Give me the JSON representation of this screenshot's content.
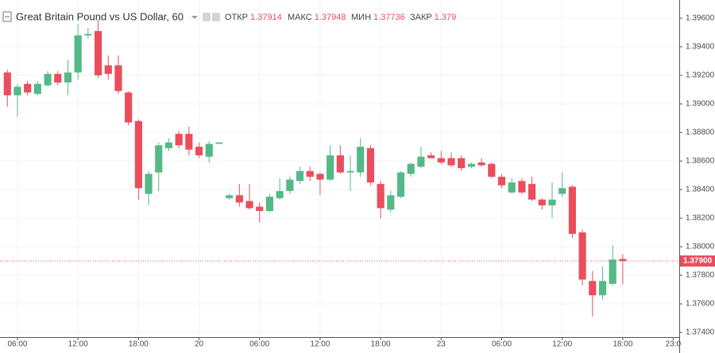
{
  "chart_data": {
    "type": "candlestick",
    "title": "Great Britain Pound vs US Dollar, 60",
    "header": [
      {
        "label": "ОТКР",
        "value": 1.37914
      },
      {
        "label": "МАКС",
        "value": 1.37948
      },
      {
        "label": "МИН",
        "value": 1.37736
      },
      {
        "label": "ЗАКР",
        "value": 1.379
      }
    ],
    "x": [
      5,
      6,
      7,
      8,
      9,
      10,
      11,
      12,
      13,
      14,
      15,
      16,
      17,
      18,
      19,
      20,
      21,
      22,
      23,
      24,
      25,
      26,
      27,
      28,
      29,
      30,
      31,
      32,
      33,
      34,
      35,
      36,
      37,
      38,
      39,
      40,
      41,
      42,
      43,
      44,
      45,
      46,
      47,
      48,
      49,
      50,
      51,
      52,
      53,
      54,
      55,
      56,
      57,
      58,
      59,
      60,
      61,
      62,
      63,
      64,
      65,
      66
    ],
    "open": [
      1.3922,
      1.3906,
      1.3914,
      1.3907,
      1.3913,
      1.3921,
      1.3915,
      1.3922,
      1.3948,
      1.3951,
      1.3927,
      1.3927,
      1.3908,
      1.3888,
      1.3837,
      1.3852,
      1.3869,
      1.3879,
      1.3879,
      1.387,
      1.3863,
      1.3872,
      1.3834,
      1.3836,
      1.3832,
      1.3828,
      1.3825,
      1.3834,
      1.3839,
      1.3846,
      1.3853,
      1.3851,
      1.3847,
      1.3864,
      1.3852,
      1.3852,
      1.3869,
      1.3844,
      1.3826,
      1.3835,
      1.3851,
      1.3856,
      1.3864,
      1.3862,
      1.3862,
      1.3862,
      1.3856,
      1.3859,
      1.3858,
      1.3849,
      1.3838,
      1.3846,
      1.3844,
      1.3833,
      1.3829,
      1.3837,
      1.3842,
      1.381,
      1.3776,
      1.3766,
      1.3774,
      1.37914
    ],
    "high": [
      1.3924,
      1.3914,
      1.3916,
      1.3916,
      1.3923,
      1.3923,
      1.3931,
      1.3956,
      1.3953,
      1.3959,
      1.3934,
      1.3934,
      1.3909,
      1.3889,
      1.3853,
      1.3873,
      1.3876,
      1.3881,
      1.3884,
      1.3873,
      1.3874,
      1.3873,
      1.3837,
      1.3844,
      1.3844,
      1.3831,
      1.3837,
      1.3848,
      1.3849,
      1.3856,
      1.3856,
      1.3852,
      1.3871,
      1.3871,
      1.3864,
      1.3876,
      1.3871,
      1.3846,
      1.3839,
      1.3853,
      1.3859,
      1.387,
      1.3866,
      1.3867,
      1.3866,
      1.3864,
      1.3859,
      1.3862,
      1.3859,
      1.3851,
      1.3848,
      1.3848,
      1.3849,
      1.3834,
      1.3845,
      1.3852,
      1.3843,
      1.3812,
      1.3783,
      1.3786,
      1.3801,
      1.37948
    ],
    "low": [
      1.3898,
      1.3891,
      1.3906,
      1.3906,
      1.3912,
      1.3913,
      1.3906,
      1.3917,
      1.3946,
      1.3918,
      1.3917,
      1.3907,
      1.3885,
      1.3833,
      1.3829,
      1.3839,
      1.3867,
      1.3869,
      1.3864,
      1.3862,
      1.3859,
      1.3872,
      1.3833,
      1.3828,
      1.3826,
      1.3817,
      1.3824,
      1.3833,
      1.3837,
      1.3844,
      1.3846,
      1.3836,
      1.3846,
      1.3851,
      1.3839,
      1.3849,
      1.3843,
      1.382,
      1.3824,
      1.3834,
      1.3849,
      1.3855,
      1.3862,
      1.3858,
      1.3856,
      1.3853,
      1.3855,
      1.3856,
      1.3848,
      1.3841,
      1.3837,
      1.3837,
      1.3832,
      1.3826,
      1.382,
      1.3835,
      1.3806,
      1.3773,
      1.3751,
      1.3763,
      1.3773,
      1.37736
    ],
    "close": [
      1.3906,
      1.3912,
      1.3908,
      1.3914,
      1.3921,
      1.3915,
      1.3922,
      1.3948,
      1.3949,
      1.392,
      1.3921,
      1.3909,
      1.3887,
      1.3841,
      1.3851,
      1.3871,
      1.3873,
      1.3871,
      1.3868,
      1.3864,
      1.3872,
      1.3873,
      1.3836,
      1.3831,
      1.3827,
      1.3825,
      1.3835,
      1.3839,
      1.3847,
      1.3853,
      1.3849,
      1.3847,
      1.3864,
      1.3852,
      1.3853,
      1.387,
      1.3845,
      1.3827,
      1.3836,
      1.3852,
      1.3858,
      1.3863,
      1.3862,
      1.3859,
      1.3857,
      1.3855,
      1.3858,
      1.3857,
      1.3849,
      1.3843,
      1.3845,
      1.3838,
      1.3833,
      1.3829,
      1.3833,
      1.3841,
      1.3809,
      1.3777,
      1.3766,
      1.3776,
      1.3791,
      1.379
    ],
    "up_color": "#53b987",
    "down_color": "#eb4d5c",
    "xlim": [
      4.27,
      71.6
    ],
    "ylim": [
      1.37367,
      1.39683
    ],
    "xticks": [
      {
        "value": 6,
        "label": "06:00"
      },
      {
        "value": 12,
        "label": "12:00"
      },
      {
        "value": 18,
        "label": "18:00"
      },
      {
        "value": 24,
        "label": "20"
      },
      {
        "value": 30,
        "label": "06:00"
      },
      {
        "value": 36,
        "label": "12:00"
      },
      {
        "value": 42,
        "label": "18:00"
      },
      {
        "value": 48,
        "label": "23"
      },
      {
        "value": 54,
        "label": "06:00"
      },
      {
        "value": 60,
        "label": "12:00"
      },
      {
        "value": 66,
        "label": "18:00"
      },
      {
        "value": 71,
        "label": "23:0"
      }
    ],
    "yticks": [
      {
        "value": 1.396,
        "label": "1.39600"
      },
      {
        "value": 1.394,
        "label": "1.39400"
      },
      {
        "value": 1.392,
        "label": "1.39200"
      },
      {
        "value": 1.39,
        "label": "1.39000"
      },
      {
        "value": 1.388,
        "label": "1.38800"
      },
      {
        "value": 1.386,
        "label": "1.38600"
      },
      {
        "value": 1.384,
        "label": "1.38400"
      },
      {
        "value": 1.382,
        "label": "1.38200"
      },
      {
        "value": 1.38,
        "label": "1.38000"
      },
      {
        "value": 1.378,
        "label": "1.37800"
      },
      {
        "value": 1.376,
        "label": "1.37600"
      },
      {
        "value": 1.374,
        "label": "1.37400"
      }
    ],
    "grid": true,
    "last_price": {
      "value": 1.379,
      "label": "1.37900"
    }
  }
}
